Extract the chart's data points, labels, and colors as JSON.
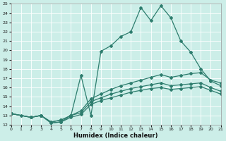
{
  "xlabel": "Humidex (Indice chaleur)",
  "bg_color": "#cceee8",
  "grid_color": "#ffffff",
  "line_color": "#2e7d6e",
  "xlim": [
    0,
    21
  ],
  "ylim": [
    12,
    25
  ],
  "xticks": [
    0,
    1,
    2,
    3,
    4,
    5,
    6,
    7,
    8,
    9,
    10,
    11,
    12,
    13,
    14,
    15,
    16,
    17,
    18,
    19,
    20,
    21
  ],
  "yticks": [
    12,
    13,
    14,
    15,
    16,
    17,
    18,
    19,
    20,
    21,
    22,
    23,
    24,
    25
  ],
  "lines": [
    {
      "x": [
        0,
        1,
        2,
        3,
        4,
        5,
        6,
        7,
        8,
        9,
        10,
        11,
        12,
        13,
        14,
        15,
        16,
        17,
        18,
        19,
        20,
        21
      ],
      "y": [
        13.2,
        13.0,
        12.8,
        13.0,
        12.2,
        12.3,
        13.0,
        17.3,
        13.0,
        19.9,
        20.5,
        21.5,
        22.0,
        24.6,
        23.2,
        24.8,
        23.5,
        21.0,
        19.8,
        18.0,
        16.7,
        16.2
      ]
    },
    {
      "x": [
        0,
        2,
        3,
        4,
        5,
        6,
        7,
        8,
        9,
        10,
        11,
        12,
        13,
        14,
        15,
        16,
        17,
        18,
        19,
        20,
        21
      ],
      "y": [
        13.2,
        12.8,
        13.0,
        12.3,
        12.5,
        13.0,
        13.5,
        14.8,
        15.3,
        15.8,
        16.2,
        16.5,
        16.8,
        17.1,
        17.4,
        17.1,
        17.3,
        17.5,
        17.6,
        16.8,
        16.5
      ]
    },
    {
      "x": [
        0,
        2,
        3,
        4,
        5,
        6,
        7,
        8,
        9,
        10,
        11,
        12,
        13,
        14,
        15,
        16,
        17,
        18,
        19,
        20,
        21
      ],
      "y": [
        13.2,
        12.8,
        13.0,
        12.3,
        12.5,
        13.0,
        13.3,
        14.5,
        14.9,
        15.3,
        15.6,
        15.9,
        16.1,
        16.3,
        16.5,
        16.2,
        16.3,
        16.4,
        16.5,
        16.0,
        15.6
      ]
    },
    {
      "x": [
        0,
        2,
        3,
        4,
        5,
        6,
        7,
        8,
        9,
        10,
        11,
        12,
        13,
        14,
        15,
        16,
        17,
        18,
        19,
        20,
        21
      ],
      "y": [
        13.2,
        12.8,
        13.0,
        12.2,
        12.3,
        12.8,
        13.1,
        14.2,
        14.6,
        14.9,
        15.2,
        15.5,
        15.7,
        15.9,
        16.0,
        15.8,
        15.9,
        16.0,
        16.1,
        15.7,
        15.3
      ]
    }
  ]
}
